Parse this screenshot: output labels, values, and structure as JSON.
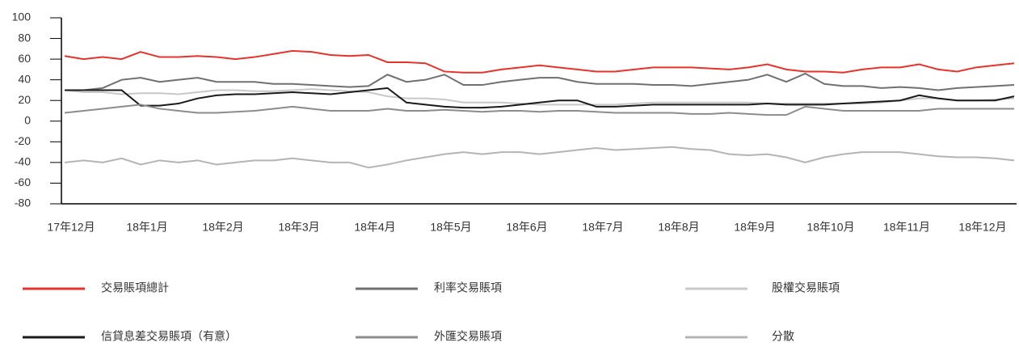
{
  "chart_data": {
    "type": "line",
    "categories": [
      "17年12月",
      null,
      null,
      null,
      "18年1月",
      null,
      null,
      null,
      "18年2月",
      null,
      null,
      null,
      "18年3月",
      null,
      null,
      null,
      "18年4月",
      null,
      null,
      null,
      "18年5月",
      null,
      null,
      null,
      "18年6月",
      null,
      null,
      null,
      "18年7月",
      null,
      null,
      null,
      "18年8月",
      null,
      null,
      null,
      "18年9月",
      null,
      null,
      null,
      "18年10月",
      null,
      null,
      null,
      "18年11月",
      null,
      null,
      null,
      "18年12月",
      null,
      null
    ],
    "ylim": [
      -80,
      100
    ],
    "yticks": [
      -80,
      -60,
      -40,
      -20,
      0,
      20,
      40,
      60,
      80,
      100
    ],
    "series": [
      {
        "name": "交易賬項總計",
        "color": "#e8322a",
        "values": [
          63,
          60,
          62,
          60,
          67,
          62,
          62,
          63,
          62,
          60,
          62,
          65,
          68,
          67,
          64,
          63,
          64,
          57,
          57,
          56,
          48,
          47,
          47,
          50,
          52,
          54,
          52,
          50,
          48,
          48,
          50,
          52,
          52,
          52,
          51,
          50,
          52,
          55,
          50,
          48,
          48,
          47,
          50,
          52,
          52,
          55,
          50,
          48,
          52,
          54,
          56
        ]
      },
      {
        "name": "利率交易賬項",
        "color": "#707070",
        "values": [
          30,
          30,
          32,
          40,
          42,
          38,
          40,
          42,
          38,
          38,
          38,
          36,
          36,
          35,
          34,
          33,
          34,
          45,
          38,
          40,
          45,
          35,
          35,
          38,
          40,
          42,
          42,
          38,
          36,
          36,
          36,
          35,
          35,
          34,
          36,
          38,
          40,
          45,
          38,
          46,
          36,
          34,
          34,
          32,
          33,
          32,
          30,
          32,
          33,
          34,
          35
        ]
      },
      {
        "name": "股權交易賬項",
        "color": "#c8c8c8",
        "values": [
          30,
          28,
          28,
          26,
          27,
          27,
          26,
          28,
          30,
          30,
          29,
          29,
          30,
          31,
          30,
          29,
          28,
          24,
          22,
          22,
          21,
          18,
          18,
          18,
          17,
          16,
          16,
          16,
          16,
          16,
          17,
          18,
          18,
          18,
          18,
          18,
          18,
          17,
          17,
          17,
          17,
          17,
          17,
          18,
          20,
          22,
          22,
          20,
          20,
          21,
          22
        ]
      },
      {
        "name": "信貸息差交易賬項（有意）",
        "color": "#1a1a1a",
        "values": [
          30,
          30,
          30,
          30,
          15,
          15,
          17,
          22,
          25,
          26,
          26,
          27,
          28,
          27,
          26,
          28,
          30,
          32,
          18,
          16,
          14,
          13,
          13,
          14,
          16,
          18,
          20,
          20,
          14,
          14,
          15,
          16,
          16,
          16,
          16,
          16,
          16,
          17,
          16,
          16,
          16,
          17,
          18,
          19,
          20,
          25,
          22,
          20,
          20,
          20,
          24
        ]
      },
      {
        "name": "外匯交易賬項",
        "color": "#8c8c8c",
        "values": [
          8,
          10,
          12,
          14,
          16,
          12,
          10,
          8,
          8,
          9,
          10,
          12,
          14,
          12,
          10,
          10,
          10,
          12,
          10,
          10,
          11,
          10,
          9,
          10,
          10,
          9,
          10,
          10,
          9,
          8,
          8,
          8,
          8,
          7,
          7,
          8,
          7,
          6,
          6,
          14,
          12,
          10,
          10,
          10,
          10,
          10,
          12,
          12,
          12,
          12,
          12
        ]
      },
      {
        "name": "分散",
        "color": "#b4b4b4",
        "values": [
          -40,
          -38,
          -40,
          -36,
          -42,
          -38,
          -40,
          -38,
          -42,
          -40,
          -38,
          -38,
          -36,
          -38,
          -40,
          -40,
          -45,
          -42,
          -38,
          -35,
          -32,
          -30,
          -32,
          -30,
          -30,
          -32,
          -30,
          -28,
          -26,
          -28,
          -27,
          -26,
          -25,
          -27,
          -28,
          -32,
          -33,
          -32,
          -35,
          -40,
          -35,
          -32,
          -30,
          -30,
          -30,
          -32,
          -34,
          -35,
          -35,
          -36,
          -38
        ]
      }
    ]
  }
}
